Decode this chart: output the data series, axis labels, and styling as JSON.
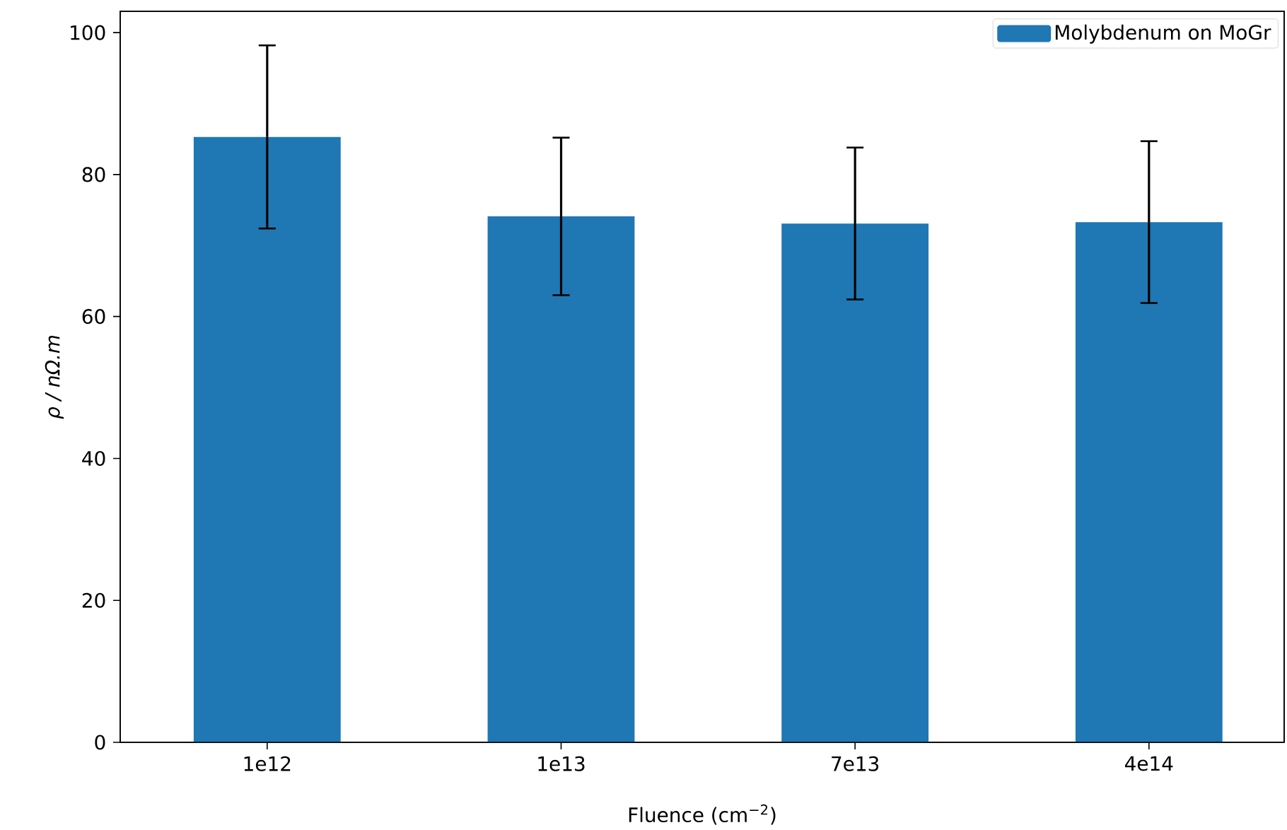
{
  "chart_data": {
    "type": "bar",
    "xlabel": "Fluence (cm$^{−2}$)",
    "ylabel": "ρ / nΩ.m",
    "categories": [
      "1e12",
      "1e13",
      "7e13",
      "4e14"
    ],
    "series": [
      {
        "name": "Molybdenum on MoGr",
        "color": "#1f77b4",
        "values": [
          85.3,
          74.1,
          73.1,
          73.3
        ],
        "errors": [
          12.9,
          11.1,
          10.7,
          11.4
        ]
      }
    ],
    "ylim": [
      0,
      103
    ],
    "yticks": [
      0,
      20,
      40,
      60,
      80,
      100
    ],
    "grid": false,
    "legend": "top right"
  }
}
